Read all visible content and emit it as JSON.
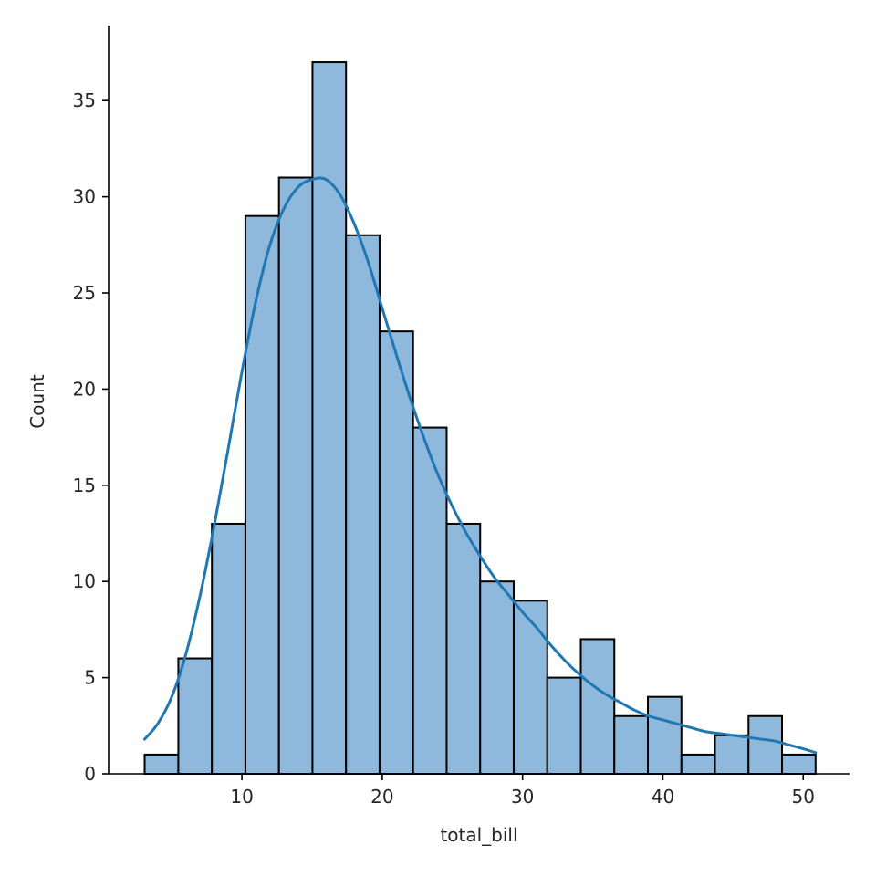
{
  "chart_data": {
    "type": "bar",
    "subtype": "histogram-with-kde",
    "title": "",
    "xlabel": "total_bill",
    "ylabel": "Count",
    "xlim": [
      0.5,
      53.3
    ],
    "ylim": [
      0,
      38.9
    ],
    "xticks": [
      10,
      20,
      30,
      40,
      50
    ],
    "yticks": [
      0,
      5,
      10,
      15,
      20,
      25,
      30,
      35
    ],
    "grid": false,
    "bar_color": "#8fb9dc",
    "bar_edge_color": "#000000",
    "kde_color": "#1f77b4",
    "bins": [
      {
        "x0": 3.07,
        "x1": 5.47,
        "count": 1
      },
      {
        "x0": 5.47,
        "x1": 7.86,
        "count": 6
      },
      {
        "x0": 7.86,
        "x1": 10.25,
        "count": 13
      },
      {
        "x0": 10.25,
        "x1": 12.64,
        "count": 29
      },
      {
        "x0": 12.64,
        "x1": 15.03,
        "count": 31
      },
      {
        "x0": 15.03,
        "x1": 17.42,
        "count": 37
      },
      {
        "x0": 17.42,
        "x1": 19.81,
        "count": 28
      },
      {
        "x0": 19.81,
        "x1": 22.2,
        "count": 23
      },
      {
        "x0": 22.2,
        "x1": 24.59,
        "count": 18
      },
      {
        "x0": 24.59,
        "x1": 26.98,
        "count": 13
      },
      {
        "x0": 26.98,
        "x1": 29.37,
        "count": 10
      },
      {
        "x0": 29.37,
        "x1": 31.76,
        "count": 9
      },
      {
        "x0": 31.76,
        "x1": 34.15,
        "count": 5
      },
      {
        "x0": 34.15,
        "x1": 36.54,
        "count": 7
      },
      {
        "x0": 36.54,
        "x1": 38.93,
        "count": 3
      },
      {
        "x0": 38.93,
        "x1": 41.32,
        "count": 4
      },
      {
        "x0": 41.32,
        "x1": 43.71,
        "count": 1
      },
      {
        "x0": 43.71,
        "x1": 46.1,
        "count": 2
      },
      {
        "x0": 46.1,
        "x1": 48.49,
        "count": 3
      },
      {
        "x0": 48.49,
        "x1": 50.88,
        "count": 1
      }
    ],
    "kde": {
      "x": [
        3.07,
        4.0,
        5.0,
        6.0,
        7.0,
        8.0,
        9.0,
        10.0,
        11.0,
        12.0,
        13.0,
        14.0,
        15.0,
        16.0,
        17.0,
        18.0,
        19.0,
        20.0,
        21.0,
        22.0,
        23.0,
        24.0,
        25.0,
        26.0,
        27.0,
        28.0,
        29.0,
        30.0,
        31.0,
        32.0,
        33.0,
        34.0,
        35.0,
        36.0,
        37.0,
        38.0,
        39.0,
        40.0,
        41.0,
        42.0,
        43.0,
        44.0,
        45.0,
        46.0,
        47.0,
        48.0,
        49.0,
        50.0,
        50.88
      ],
      "y": [
        1.8,
        2.6,
        4.0,
        6.2,
        9.2,
        12.8,
        16.8,
        20.9,
        24.6,
        27.5,
        29.4,
        30.5,
        30.9,
        30.9,
        30.1,
        28.6,
        26.6,
        24.2,
        21.8,
        19.5,
        17.4,
        15.5,
        13.9,
        12.5,
        11.3,
        10.2,
        9.3,
        8.4,
        7.6,
        6.7,
        5.9,
        5.2,
        4.6,
        4.1,
        3.7,
        3.3,
        3.0,
        2.8,
        2.6,
        2.4,
        2.2,
        2.1,
        2.0,
        1.9,
        1.8,
        1.7,
        1.5,
        1.3,
        1.1
      ]
    }
  }
}
